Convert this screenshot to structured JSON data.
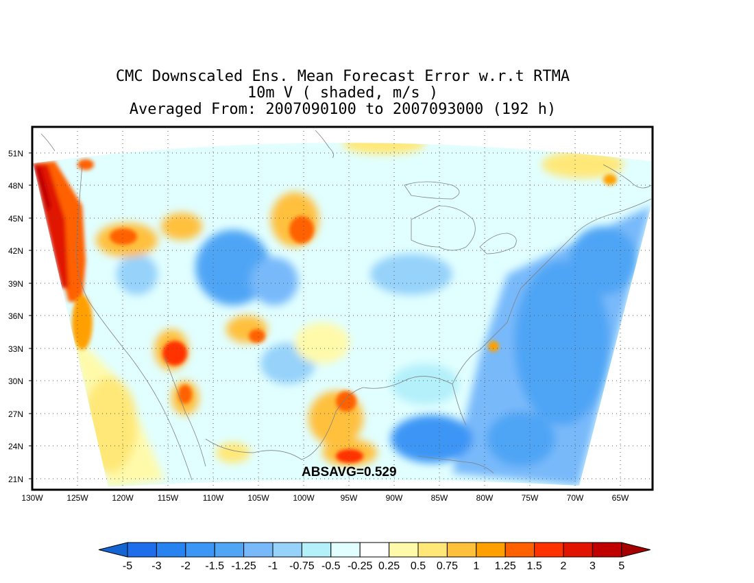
{
  "title": {
    "line1": "CMC Downscaled Ens. Mean Forecast Error w.r.t RTMA",
    "line2": "10m V ( shaded, m/s )",
    "line3": "Averaged From: 2007090100 to 2007093000 (192 h)"
  },
  "annotation": "ABSAVG=0.529",
  "map": {
    "lon_range": [
      -130,
      -61.5
    ],
    "lat_range": [
      20,
      52
    ],
    "lon_ticks": [
      "130W",
      "125W",
      "120W",
      "115W",
      "110W",
      "105W",
      "100W",
      "95W",
      "90W",
      "85W",
      "80W",
      "75W",
      "70W",
      "65W"
    ],
    "lat_ticks": [
      "51N",
      "48N",
      "45N",
      "42N",
      "39N",
      "36N",
      "33N",
      "30N",
      "27N",
      "24N",
      "21N"
    ],
    "grid": "dotted",
    "projection": "Lambert conformal (CONUS)"
  },
  "colorbar": {
    "labels": [
      "-5",
      "-3",
      "-2",
      "-1.5",
      "-1.25",
      "-1",
      "-0.75",
      "-0.5",
      "-0.25",
      "0.25",
      "0.5",
      "0.75",
      "1",
      "1.25",
      "1.5",
      "2",
      "3",
      "5"
    ],
    "colors": [
      "#1e6eeb",
      "#2882f0",
      "#3c96f5",
      "#50a5f5",
      "#78b9fa",
      "#96d2fa",
      "#b4f0fa",
      "#e1ffff",
      "#ffffff",
      "#fffaaa",
      "#ffe878",
      "#ffc03c",
      "#ffa000",
      "#ff6000",
      "#ff3200",
      "#e11400",
      "#c00000",
      "#a50000"
    ],
    "under_color": "#1464d2",
    "over_color": "#a50000"
  },
  "regions": {
    "west_coast": "strong positive error (red)",
    "rockies_plains": "mixed positive/negative",
    "eastern_us": "negative error (blue)"
  }
}
